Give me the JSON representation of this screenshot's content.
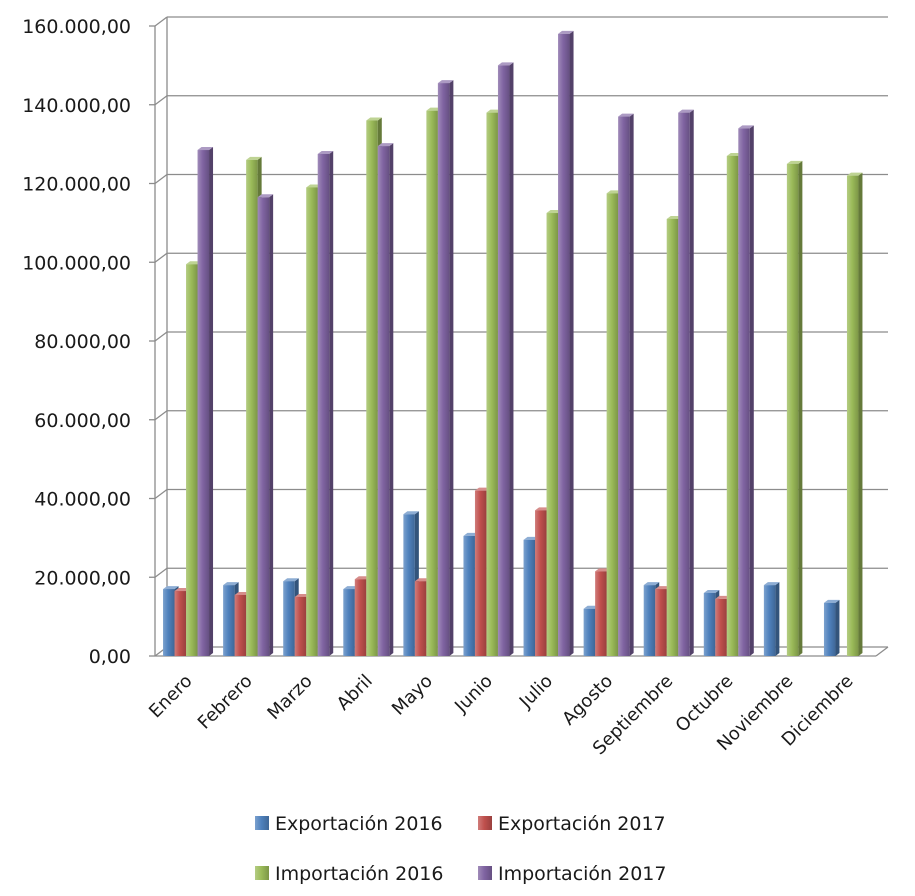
{
  "chart_data": {
    "type": "bar",
    "title": "",
    "xlabel": "",
    "ylabel": "",
    "ylim": [
      0,
      160000
    ],
    "yticks": [
      0,
      20000,
      40000,
      60000,
      80000,
      100000,
      120000,
      140000,
      160000
    ],
    "ytick_labels": [
      "0,00",
      "20.000,00",
      "40.000,00",
      "60.000,00",
      "80.000,00",
      "100.000,00",
      "120.000,00",
      "140.000,00",
      "160.000,00"
    ],
    "grid": true,
    "legend_position": "bottom",
    "categories": [
      "Enero",
      "Febrero",
      "Marzo",
      "Abril",
      "Mayo",
      "Junio",
      "Julio",
      "Agosto",
      "Septiembre",
      "Octubre",
      "Noviembre",
      "Diciembre"
    ],
    "series": [
      {
        "name": "Exportación 2016",
        "color": "#4f81bd",
        "values": [
          17000,
          18000,
          19000,
          17000,
          36000,
          30500,
          29500,
          12000,
          18000,
          16000,
          18000,
          13500
        ]
      },
      {
        "name": "Exportación 2017",
        "color": "#c0504d",
        "values": [
          16500,
          15500,
          15000,
          19500,
          19000,
          42000,
          37000,
          21500,
          17000,
          14500,
          0,
          0
        ]
      },
      {
        "name": "Importación 2016",
        "color": "#9bbb59",
        "values": [
          99500,
          126000,
          119000,
          136000,
          138500,
          138000,
          112500,
          117500,
          111000,
          127000,
          125000,
          122000
        ]
      },
      {
        "name": "Importación 2017",
        "color": "#8064a2",
        "values": [
          128500,
          116500,
          127500,
          129500,
          145500,
          150000,
          158000,
          137000,
          138000,
          134000,
          0,
          0
        ]
      }
    ]
  }
}
